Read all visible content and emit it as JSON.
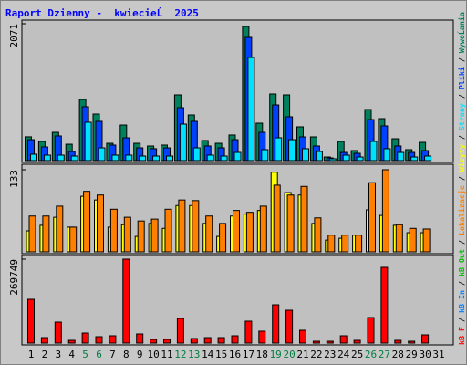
{
  "chart_data": [
    {
      "type": "bar",
      "title": "Raport Dzienny -  kwiecieĹ  2025",
      "ylim": [
        0,
        2071
      ],
      "series": [
        {
          "name": "WywoĹania",
          "color": "#00805c",
          "values": [
            360,
            290,
            428,
            248,
            925,
            704,
            262,
            538,
            262,
            221,
            235,
            994,
            690,
            304,
            262,
            387,
            2030,
            566,
            1008,
            994,
            511,
            359,
            55,
            290,
            152,
            773,
            635,
            331,
            166,
            276,
            null
          ]
        },
        {
          "name": "Pliki",
          "color": "#0040ff",
          "values": [
            317,
            207,
            373,
            138,
            815,
            594,
            235,
            345,
            193,
            180,
            193,
            801,
            594,
            221,
            193,
            317,
            1864,
            428,
            842,
            663,
            359,
            221,
            41,
            124,
            110,
            621,
            525,
            221,
            124,
            152,
            null
          ]
        },
        {
          "name": "Strony",
          "color": "#00e0ff",
          "values": [
            97,
            83,
            83,
            69,
            580,
            193,
            83,
            83,
            69,
            69,
            69,
            552,
            193,
            83,
            69,
            124,
            1560,
            166,
            345,
            317,
            180,
            138,
            28,
            83,
            55,
            290,
            180,
            124,
            55,
            69,
            null
          ]
        }
      ]
    },
    {
      "type": "bar",
      "ylim": [
        0,
        133
      ],
      "series": [
        {
          "name": "Wizyty",
          "color": "#ffff00",
          "values": [
            34,
            43,
            56,
            40,
            90,
            84,
            40,
            44,
            25,
            46,
            38,
            75,
            75,
            46,
            25,
            58,
            61,
            67,
            129,
            96,
            92,
            46,
            19,
            22,
            27,
            68,
            59,
            43,
            31,
            31,
            null
          ]
        },
        {
          "name": "Lokalizacje",
          "color": "#ff8000",
          "values": [
            58,
            58,
            74,
            40,
            98,
            92,
            69,
            56,
            50,
            53,
            69,
            84,
            83,
            58,
            46,
            67,
            64,
            74,
            108,
            92,
            106,
            55,
            27,
            27,
            27,
            112,
            133,
            44,
            38,
            37,
            null
          ]
        }
      ]
    },
    {
      "type": "bar",
      "ylim": [
        0,
        269749
      ],
      "categories": [
        "1",
        "2",
        "3",
        "4",
        "5",
        "6",
        "7",
        "8",
        "9",
        "10",
        "11",
        "12",
        "13",
        "14",
        "15",
        "16",
        "17",
        "18",
        "19",
        "20",
        "21",
        "22",
        "23",
        "24",
        "25",
        "26",
        "27",
        "28",
        "29",
        "30",
        "31"
      ],
      "highlight_indices": [
        4,
        5,
        11,
        12,
        18,
        19,
        25,
        26
      ],
      "highlight_color": "#008040",
      "legend_separator": " / ",
      "series": [
        {
          "name": "kB F",
          "color": "#ff0000",
          "values": [
            140741,
            17592,
            67436,
            8796,
            32252,
            20524,
            23456,
            269749,
            29320,
            11728,
            11728,
            79164,
            14660,
            17592,
            17592,
            23456,
            70368,
            38116,
            123144,
            105552,
            41048,
            5864,
            5864,
            23456,
            8796,
            82096,
            243356,
            8796,
            5864,
            26388,
            null
          ]
        },
        {
          "name": "kB In",
          "color": "#0080ff",
          "values": [
            null,
            null,
            null,
            null,
            null,
            null,
            null,
            null,
            null,
            null,
            null,
            null,
            null,
            null,
            null,
            null,
            null,
            null,
            null,
            null,
            null,
            null,
            null,
            null,
            null,
            null,
            null,
            null,
            null,
            null,
            null
          ]
        },
        {
          "name": "kB Out",
          "color": "#00c000",
          "values": [
            null,
            null,
            null,
            null,
            null,
            null,
            null,
            null,
            null,
            null,
            null,
            null,
            null,
            null,
            null,
            null,
            null,
            null,
            null,
            null,
            null,
            null,
            null,
            null,
            null,
            null,
            null,
            null,
            null,
            null,
            null
          ]
        }
      ]
    }
  ]
}
